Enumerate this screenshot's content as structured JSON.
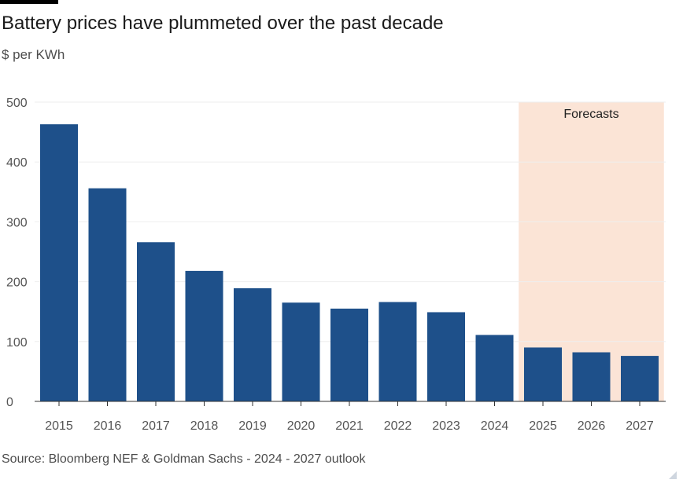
{
  "header": {
    "title": "Battery prices have plummeted over the past decade",
    "subtitle": "$ per KWh"
  },
  "footer": {
    "source": "Source: Bloomberg NEF & Goldman Sachs - 2024 - 2027 outlook"
  },
  "colors": {
    "bar": "#1e508a",
    "forecast_band": "#fbe4d6",
    "grid": "#eeeeee",
    "tick_text": "#555555"
  },
  "chart_data": {
    "type": "bar",
    "title": "Battery prices have plummeted over the past decade",
    "ylabel": "$ per KWh",
    "xlabel": "",
    "categories": [
      "2015",
      "2016",
      "2017",
      "2018",
      "2019",
      "2020",
      "2021",
      "2022",
      "2023",
      "2024",
      "2025",
      "2026",
      "2027"
    ],
    "values": [
      463,
      356,
      266,
      218,
      189,
      165,
      155,
      166,
      149,
      111,
      90,
      82,
      76
    ],
    "ylim": [
      0,
      500
    ],
    "yticks": [
      0,
      100,
      200,
      300,
      400,
      500
    ],
    "grid": true,
    "forecast": {
      "label": "Forecasts",
      "from": "2025",
      "to": "2027"
    }
  }
}
